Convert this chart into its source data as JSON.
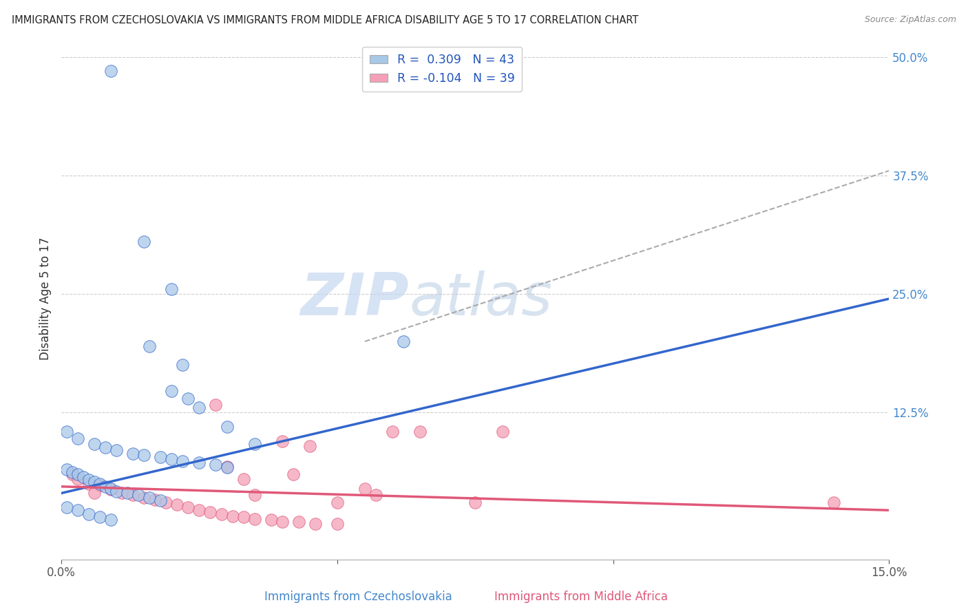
{
  "title": "IMMIGRANTS FROM CZECHOSLOVAKIA VS IMMIGRANTS FROM MIDDLE AFRICA DISABILITY AGE 5 TO 17 CORRELATION CHART",
  "source": "Source: ZipAtlas.com",
  "xlabel_bottom": [
    "Immigrants from Czechoslovakia",
    "Immigrants from Middle Africa"
  ],
  "ylabel": "Disability Age 5 to 17",
  "xlim": [
    0.0,
    0.15
  ],
  "ylim": [
    -0.03,
    0.52
  ],
  "xticks": [
    0.0,
    0.05,
    0.1,
    0.15
  ],
  "xticklabels": [
    "0.0%",
    "",
    "",
    "15.0%"
  ],
  "yticks_right": [
    0.0,
    0.125,
    0.25,
    0.375,
    0.5
  ],
  "ytick_right_labels": [
    "",
    "12.5%",
    "25.0%",
    "37.5%",
    "50.0%"
  ],
  "color_blue": "#a8c8e8",
  "color_pink": "#f4a0b8",
  "line_blue": "#3366cc",
  "line_pink": "#e05878",
  "line_dash": "#aaaaaa",
  "watermark_zip": "ZIP",
  "watermark_atlas": "atlas",
  "blue_scatter": [
    [
      0.009,
      0.485
    ],
    [
      0.015,
      0.305
    ],
    [
      0.02,
      0.255
    ],
    [
      0.016,
      0.195
    ],
    [
      0.022,
      0.175
    ],
    [
      0.02,
      0.148
    ],
    [
      0.023,
      0.14
    ],
    [
      0.025,
      0.13
    ],
    [
      0.001,
      0.105
    ],
    [
      0.003,
      0.098
    ],
    [
      0.006,
      0.092
    ],
    [
      0.008,
      0.088
    ],
    [
      0.01,
      0.085
    ],
    [
      0.013,
      0.082
    ],
    [
      0.015,
      0.08
    ],
    [
      0.018,
      0.078
    ],
    [
      0.02,
      0.076
    ],
    [
      0.022,
      0.074
    ],
    [
      0.025,
      0.072
    ],
    [
      0.028,
      0.07
    ],
    [
      0.03,
      0.067
    ],
    [
      0.001,
      0.065
    ],
    [
      0.002,
      0.062
    ],
    [
      0.003,
      0.06
    ],
    [
      0.004,
      0.057
    ],
    [
      0.005,
      0.054
    ],
    [
      0.006,
      0.052
    ],
    [
      0.007,
      0.05
    ],
    [
      0.008,
      0.047
    ],
    [
      0.009,
      0.045
    ],
    [
      0.01,
      0.042
    ],
    [
      0.012,
      0.04
    ],
    [
      0.014,
      0.038
    ],
    [
      0.016,
      0.035
    ],
    [
      0.018,
      0.032
    ],
    [
      0.001,
      0.025
    ],
    [
      0.003,
      0.022
    ],
    [
      0.005,
      0.018
    ],
    [
      0.007,
      0.015
    ],
    [
      0.009,
      0.012
    ],
    [
      0.062,
      0.2
    ],
    [
      0.03,
      0.11
    ],
    [
      0.035,
      0.092
    ]
  ],
  "pink_scatter": [
    [
      0.002,
      0.06
    ],
    [
      0.003,
      0.055
    ],
    [
      0.005,
      0.05
    ],
    [
      0.007,
      0.048
    ],
    [
      0.009,
      0.044
    ],
    [
      0.011,
      0.04
    ],
    [
      0.013,
      0.038
    ],
    [
      0.015,
      0.035
    ],
    [
      0.017,
      0.033
    ],
    [
      0.019,
      0.03
    ],
    [
      0.021,
      0.028
    ],
    [
      0.023,
      0.025
    ],
    [
      0.025,
      0.022
    ],
    [
      0.027,
      0.02
    ],
    [
      0.029,
      0.018
    ],
    [
      0.031,
      0.016
    ],
    [
      0.033,
      0.015
    ],
    [
      0.035,
      0.013
    ],
    [
      0.038,
      0.012
    ],
    [
      0.04,
      0.01
    ],
    [
      0.043,
      0.01
    ],
    [
      0.046,
      0.008
    ],
    [
      0.028,
      0.133
    ],
    [
      0.04,
      0.095
    ],
    [
      0.045,
      0.09
    ],
    [
      0.042,
      0.06
    ],
    [
      0.055,
      0.045
    ],
    [
      0.057,
      0.038
    ],
    [
      0.065,
      0.105
    ],
    [
      0.03,
      0.068
    ],
    [
      0.033,
      0.055
    ],
    [
      0.035,
      0.038
    ],
    [
      0.05,
      0.03
    ],
    [
      0.06,
      0.105
    ],
    [
      0.08,
      0.105
    ],
    [
      0.075,
      0.03
    ],
    [
      0.05,
      0.008
    ],
    [
      0.14,
      0.03
    ],
    [
      0.006,
      0.04
    ]
  ],
  "blue_line_x": [
    0.0,
    0.15
  ],
  "blue_line_y": [
    0.04,
    0.245
  ],
  "pink_line_x": [
    0.0,
    0.15
  ],
  "pink_line_y": [
    0.047,
    0.022
  ],
  "dash_line_x": [
    0.055,
    0.15
  ],
  "dash_line_y": [
    0.2,
    0.38
  ]
}
